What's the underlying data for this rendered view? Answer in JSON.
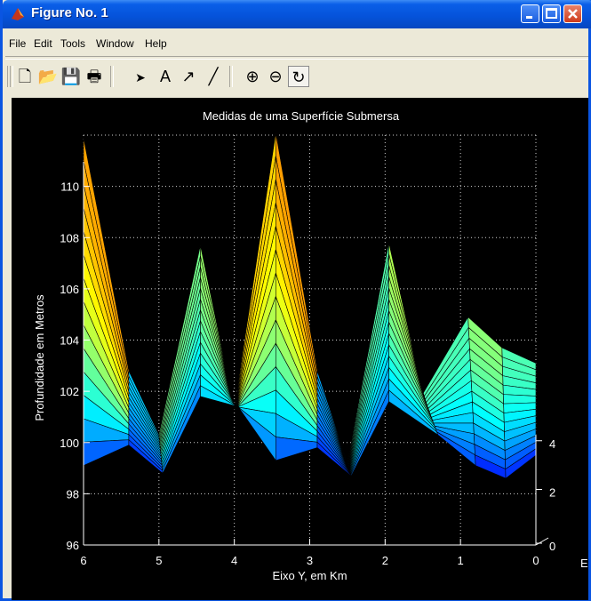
{
  "window": {
    "title": "Figure No. 1"
  },
  "menu": [
    "File",
    "Edit",
    "Tools",
    "Window",
    "Help"
  ],
  "toolbar": [
    {
      "name": "new-file-icon",
      "glyph": "🗋"
    },
    {
      "name": "open-folder-icon",
      "glyph": "📂"
    },
    {
      "name": "save-icon",
      "glyph": "💾"
    },
    {
      "name": "print-icon",
      "glyph": "🖶"
    },
    {
      "name": "select-arrow-icon",
      "glyph": "➤"
    },
    {
      "name": "insert-text-icon",
      "glyph": "A"
    },
    {
      "name": "insert-arrow-icon",
      "glyph": "↗"
    },
    {
      "name": "insert-line-icon",
      "glyph": "╱"
    },
    {
      "name": "zoom-in-icon",
      "glyph": "⊕"
    },
    {
      "name": "zoom-out-icon",
      "glyph": "⊖"
    },
    {
      "name": "rotate-3d-icon",
      "glyph": "↻"
    }
  ],
  "chart_data": {
    "type": "surface",
    "title": "Medidas de uma Superfície Submersa",
    "xlabel": "Eixo Y, em Km",
    "ylabel": "Profundidade em Metros",
    "xaxis_tail_label": "E",
    "x_ticks": [
      "6",
      "5",
      "4",
      "3",
      "2",
      "1",
      "0"
    ],
    "y_ticks": [
      "96",
      "98",
      "100",
      "102",
      "104",
      "106",
      "108",
      "110"
    ],
    "z_ticks": [
      "0",
      "2",
      "4"
    ],
    "xlim": [
      6,
      0
    ],
    "ylim": [
      96,
      112
    ],
    "grid": true,
    "colormap": "jet",
    "series": [
      {
        "values": [
          {
            "x": 6.0,
            "y": 111.9
          },
          {
            "x": 5.4,
            "y": 102.8
          },
          {
            "x": 5.0,
            "y": 100.3
          },
          {
            "x": 4.45,
            "y": 107.7
          },
          {
            "x": 4.0,
            "y": 101.3
          },
          {
            "x": 3.45,
            "y": 112.1
          },
          {
            "x": 2.9,
            "y": 102.8
          },
          {
            "x": 2.5,
            "y": 99.2
          },
          {
            "x": 1.95,
            "y": 107.8
          },
          {
            "x": 1.5,
            "y": 101.9
          },
          {
            "x": 0.9,
            "y": 104.9
          },
          {
            "x": 0.45,
            "y": 103.7
          },
          {
            "x": 0.0,
            "y": 103.1
          }
        ]
      },
      {
        "values": [
          {
            "x": 6.0,
            "y": 99.1
          },
          {
            "x": 5.4,
            "y": 99.9
          },
          {
            "x": 4.95,
            "y": 98.8
          },
          {
            "x": 4.45,
            "y": 101.8
          },
          {
            "x": 3.95,
            "y": 101.4
          },
          {
            "x": 3.45,
            "y": 99.3
          },
          {
            "x": 2.9,
            "y": 99.8
          },
          {
            "x": 2.45,
            "y": 98.7
          },
          {
            "x": 1.95,
            "y": 101.6
          },
          {
            "x": 1.3,
            "y": 100.3
          },
          {
            "x": 0.8,
            "y": 99.1
          },
          {
            "x": 0.4,
            "y": 98.6
          },
          {
            "x": 0.0,
            "y": 99.5
          }
        ]
      }
    ]
  }
}
